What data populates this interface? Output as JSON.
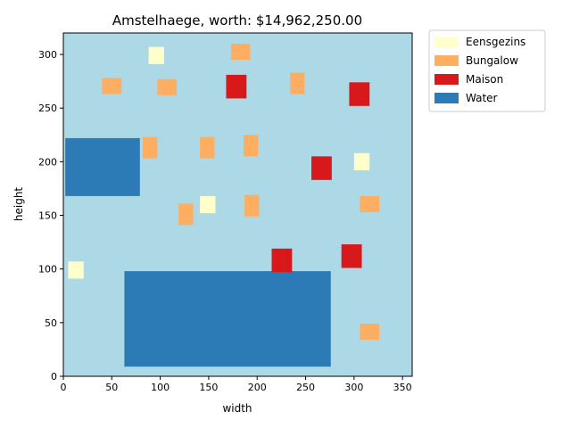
{
  "chart_data": {
    "type": "map",
    "title": "Amstelhaege, worth: $14,962,250.00",
    "xlabel": "width",
    "ylabel": "height",
    "xlim": [
      0,
      360
    ],
    "ylim": [
      0,
      320
    ],
    "xticks": [
      0,
      50,
      100,
      150,
      200,
      250,
      300,
      350
    ],
    "yticks": [
      0,
      50,
      100,
      150,
      200,
      250,
      300
    ],
    "background_color": "#add8e6",
    "legend": {
      "placement": "outside-top-right",
      "entries": [
        {
          "label": "Eensgezins",
          "color": "#ffffcc"
        },
        {
          "label": "Bungalow",
          "color": "#fdae61"
        },
        {
          "label": "Maison",
          "color": "#d7191c"
        },
        {
          "label": "Water",
          "color": "#2c7bb6"
        }
      ]
    },
    "areas": [
      {
        "type": "Water",
        "x0": 2,
        "x1": 79,
        "y0": 168,
        "y1": 222
      },
      {
        "type": "Water",
        "x0": 63,
        "x1": 276,
        "y0": 9,
        "y1": 98
      },
      {
        "type": "Eensgezins",
        "x0": 88,
        "x1": 104,
        "y0": 291,
        "y1": 307
      },
      {
        "type": "Eensgezins",
        "x0": 141,
        "x1": 157,
        "y0": 152,
        "y1": 168
      },
      {
        "type": "Eensgezins",
        "x0": 300,
        "x1": 316,
        "y0": 192,
        "y1": 208
      },
      {
        "type": "Eensgezins",
        "x0": 5,
        "x1": 21,
        "y0": 91,
        "y1": 107
      },
      {
        "type": "Bungalow",
        "x0": 40,
        "x1": 60,
        "y0": 263,
        "y1": 278
      },
      {
        "type": "Bungalow",
        "x0": 97,
        "x1": 117,
        "y0": 262,
        "y1": 277
      },
      {
        "type": "Bungalow",
        "x0": 173,
        "x1": 193,
        "y0": 295,
        "y1": 310
      },
      {
        "type": "Bungalow",
        "x0": 234,
        "x1": 249,
        "y0": 263,
        "y1": 283
      },
      {
        "type": "Bungalow",
        "x0": 82,
        "x1": 97,
        "y0": 203,
        "y1": 223
      },
      {
        "type": "Bungalow",
        "x0": 141,
        "x1": 156,
        "y0": 203,
        "y1": 223
      },
      {
        "type": "Bungalow",
        "x0": 186,
        "x1": 201,
        "y0": 205,
        "y1": 225
      },
      {
        "type": "Bungalow",
        "x0": 187,
        "x1": 202,
        "y0": 149,
        "y1": 169
      },
      {
        "type": "Bungalow",
        "x0": 119,
        "x1": 134,
        "y0": 141,
        "y1": 161
      },
      {
        "type": "Bungalow",
        "x0": 306,
        "x1": 326,
        "y0": 153,
        "y1": 168
      },
      {
        "type": "Bungalow",
        "x0": 306,
        "x1": 326,
        "y0": 34,
        "y1": 49
      },
      {
        "type": "Maison",
        "x0": 168,
        "x1": 189,
        "y0": 259,
        "y1": 281
      },
      {
        "type": "Maison",
        "x0": 295,
        "x1": 316,
        "y0": 252,
        "y1": 274
      },
      {
        "type": "Maison",
        "x0": 256,
        "x1": 277,
        "y0": 183,
        "y1": 205
      },
      {
        "type": "Maison",
        "x0": 215,
        "x1": 236,
        "y0": 97,
        "y1": 119
      },
      {
        "type": "Maison",
        "x0": 287,
        "x1": 308,
        "y0": 101,
        "y1": 123
      }
    ]
  }
}
